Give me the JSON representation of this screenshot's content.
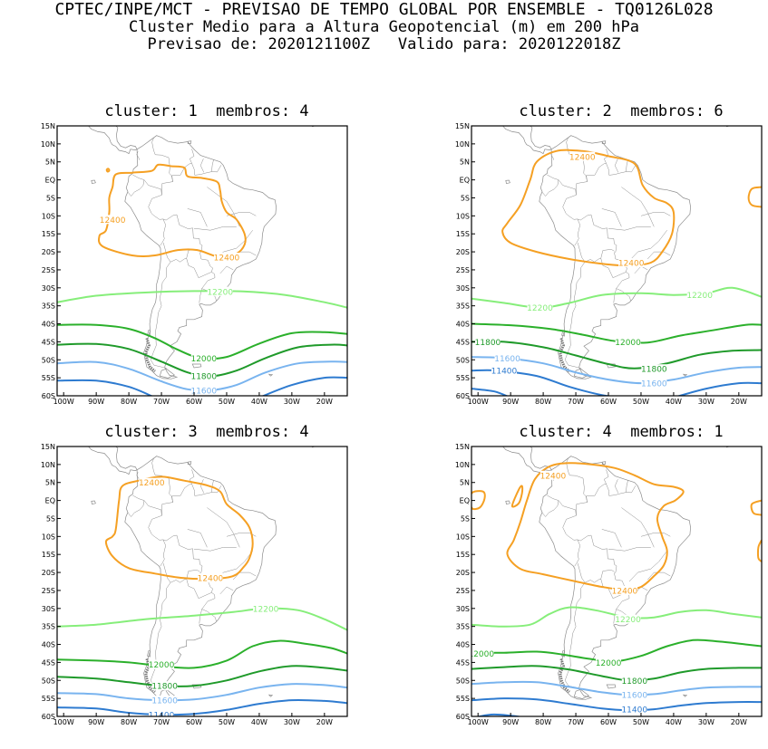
{
  "header": {
    "line1": "CPTEC/INPE/MCT - PREVISAO DE TEMPO GLOBAL POR ENSEMBLE - TQ0126L028",
    "line2": "Cluster Medio para a Altura Geopotencial (m) em 200 hPa",
    "line3": "Previsao de: 2020121100Z   Valido para: 2020122018Z"
  },
  "axes": {
    "lat_labels": [
      "15N",
      "10N",
      "5N",
      "EQ",
      "5S",
      "10S",
      "15S",
      "20S",
      "25S",
      "30S",
      "35S",
      "40S",
      "45S",
      "50S",
      "55S",
      "60S"
    ],
    "lon_labels": [
      "100W",
      "90W",
      "80W",
      "70W",
      "60W",
      "50W",
      "40W",
      "30W",
      "20W"
    ]
  },
  "colors": {
    "c12400": "#f5a023",
    "c12200": "#86ee7a",
    "c12000": "#2bb02b",
    "c11800": "#1f9a2a",
    "c11600": "#79b4ef",
    "c11400": "#2e7bd0"
  },
  "panels": [
    {
      "title": "cluster: 1  membros: 4",
      "labels": [
        {
          "t": "12400",
          "lon": -85,
          "lat": -11,
          "lv": "c12400"
        },
        {
          "t": "12400",
          "lon": -50,
          "lat": -21.5,
          "lv": "c12400"
        },
        {
          "t": "12200",
          "lon": -52,
          "lat": -31,
          "lv": "c12200"
        },
        {
          "t": "12000",
          "lon": -57,
          "lat": -49.5,
          "lv": "c12000"
        },
        {
          "t": "11800",
          "lon": -57,
          "lat": -54.5,
          "lv": "c11800"
        },
        {
          "t": "11600",
          "lon": -57,
          "lat": -58.5,
          "lv": "c11600"
        }
      ]
    },
    {
      "title": "cluster: 2  membros: 6",
      "labels": [
        {
          "t": "12400",
          "lon": -68,
          "lat": 6.5,
          "lv": "c12400"
        },
        {
          "t": "12400",
          "lon": -53,
          "lat": -23,
          "lv": "c12400"
        },
        {
          "t": "12200",
          "lon": -81,
          "lat": -35.5,
          "lv": "c12200"
        },
        {
          "t": "12200",
          "lon": -32,
          "lat": -32,
          "lv": "c12200"
        },
        {
          "t": "12000",
          "lon": -54,
          "lat": -45,
          "lv": "c12000"
        },
        {
          "t": "11800",
          "lon": -97,
          "lat": -45,
          "lv": "c11800"
        },
        {
          "t": "11800",
          "lon": -46,
          "lat": -52.5,
          "lv": "c11800"
        },
        {
          "t": "11600",
          "lon": -91,
          "lat": -49.5,
          "lv": "c11600"
        },
        {
          "t": "11600",
          "lon": -46,
          "lat": -56.5,
          "lv": "c11600"
        },
        {
          "t": "11400",
          "lon": -92,
          "lat": -53,
          "lv": "c11400"
        }
      ]
    },
    {
      "title": "cluster: 3  membros: 4",
      "labels": [
        {
          "t": "12400",
          "lon": -73,
          "lat": 5,
          "lv": "c12400"
        },
        {
          "t": "12400",
          "lon": -55,
          "lat": -21.5,
          "lv": "c12400"
        },
        {
          "t": "12200",
          "lon": -38,
          "lat": -30,
          "lv": "c12200"
        },
        {
          "t": "12000",
          "lon": -70,
          "lat": -45.5,
          "lv": "c12000"
        },
        {
          "t": "11800",
          "lon": -69,
          "lat": -51.5,
          "lv": "c11800"
        },
        {
          "t": "11600",
          "lon": -69,
          "lat": -55.5,
          "lv": "c11600"
        },
        {
          "t": "11400",
          "lon": -70,
          "lat": -59.5,
          "lv": "c11400"
        }
      ]
    },
    {
      "title": "cluster: 4  membros: 1",
      "labels": [
        {
          "t": "12400",
          "lon": -77,
          "lat": 7,
          "lv": "c12400"
        },
        {
          "t": "12400",
          "lon": -55,
          "lat": -25,
          "lv": "c12400"
        },
        {
          "t": "12200",
          "lon": -54,
          "lat": -33,
          "lv": "c12200"
        },
        {
          "t": "12000",
          "lon": -99,
          "lat": -42.5,
          "lv": "c12000"
        },
        {
          "t": "12000",
          "lon": -60,
          "lat": -45,
          "lv": "c12000"
        },
        {
          "t": "11800",
          "lon": -52,
          "lat": -50,
          "lv": "c11800"
        },
        {
          "t": "11600",
          "lon": -52,
          "lat": -54,
          "lv": "c11600"
        },
        {
          "t": "11400",
          "lon": -52,
          "lat": -58,
          "lv": "c11400"
        }
      ]
    }
  ]
}
